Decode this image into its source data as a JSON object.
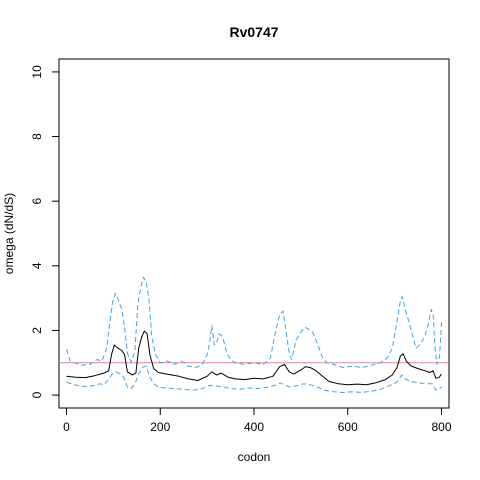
{
  "chart_data": {
    "type": "line",
    "title": "Rv0747",
    "xlabel": "codon",
    "ylabel": "omega (dN/dS)",
    "xlim": [
      -16,
      816
    ],
    "ylim": [
      -0.4,
      10.4
    ],
    "x_ticks": [
      0,
      200,
      400,
      600,
      800
    ],
    "y_ticks": [
      0,
      2,
      4,
      6,
      8,
      10
    ],
    "grid": false,
    "reference_line": {
      "y": 1,
      "color": "#d8899f"
    },
    "colors": {
      "estimate": "#000000",
      "interval": "#3ea4e3"
    },
    "series": [
      {
        "style": "solid",
        "points": [
          [
            0,
            0.58
          ],
          [
            20,
            0.55
          ],
          [
            40,
            0.54
          ],
          [
            60,
            0.6
          ],
          [
            80,
            0.68
          ],
          [
            90,
            0.75
          ],
          [
            96,
            1.25
          ],
          [
            102,
            1.55
          ],
          [
            110,
            1.45
          ],
          [
            118,
            1.38
          ],
          [
            124,
            1.25
          ],
          [
            130,
            0.72
          ],
          [
            140,
            0.62
          ],
          [
            148,
            0.68
          ],
          [
            154,
            1.45
          ],
          [
            160,
            1.78
          ],
          [
            166,
            1.98
          ],
          [
            172,
            1.9
          ],
          [
            178,
            1.25
          ],
          [
            186,
            0.82
          ],
          [
            196,
            0.7
          ],
          [
            210,
            0.66
          ],
          [
            225,
            0.62
          ],
          [
            240,
            0.58
          ],
          [
            260,
            0.5
          ],
          [
            280,
            0.45
          ],
          [
            300,
            0.58
          ],
          [
            310,
            0.72
          ],
          [
            320,
            0.62
          ],
          [
            330,
            0.68
          ],
          [
            345,
            0.55
          ],
          [
            360,
            0.5
          ],
          [
            380,
            0.48
          ],
          [
            400,
            0.52
          ],
          [
            420,
            0.5
          ],
          [
            440,
            0.58
          ],
          [
            455,
            0.88
          ],
          [
            465,
            0.95
          ],
          [
            475,
            0.72
          ],
          [
            485,
            0.65
          ],
          [
            500,
            0.78
          ],
          [
            510,
            0.88
          ],
          [
            520,
            0.85
          ],
          [
            530,
            0.78
          ],
          [
            545,
            0.6
          ],
          [
            560,
            0.42
          ],
          [
            580,
            0.35
          ],
          [
            600,
            0.32
          ],
          [
            620,
            0.34
          ],
          [
            640,
            0.32
          ],
          [
            660,
            0.38
          ],
          [
            680,
            0.48
          ],
          [
            695,
            0.62
          ],
          [
            705,
            0.85
          ],
          [
            712,
            1.2
          ],
          [
            718,
            1.28
          ],
          [
            725,
            1.05
          ],
          [
            735,
            0.9
          ],
          [
            750,
            0.82
          ],
          [
            765,
            0.75
          ],
          [
            775,
            0.7
          ],
          [
            782,
            0.75
          ],
          [
            788,
            0.52
          ],
          [
            795,
            0.55
          ],
          [
            800,
            0.65
          ]
        ]
      },
      {
        "style": "dashed",
        "points": [
          [
            0,
            1.42
          ],
          [
            8,
            1.05
          ],
          [
            18,
            1.0
          ],
          [
            30,
            0.92
          ],
          [
            50,
            0.95
          ],
          [
            65,
            1.1
          ],
          [
            75,
            1.05
          ],
          [
            85,
            1.4
          ],
          [
            92,
            2.2
          ],
          [
            98,
            2.85
          ],
          [
            104,
            3.15
          ],
          [
            110,
            2.95
          ],
          [
            118,
            2.65
          ],
          [
            124,
            2.1
          ],
          [
            130,
            1.3
          ],
          [
            138,
            1.02
          ],
          [
            146,
            1.35
          ],
          [
            152,
            2.8
          ],
          [
            158,
            3.3
          ],
          [
            164,
            3.65
          ],
          [
            170,
            3.5
          ],
          [
            176,
            2.95
          ],
          [
            182,
            1.8
          ],
          [
            190,
            1.25
          ],
          [
            200,
            1.0
          ],
          [
            215,
            1.05
          ],
          [
            230,
            0.95
          ],
          [
            245,
            1.05
          ],
          [
            260,
            0.9
          ],
          [
            275,
            0.85
          ],
          [
            290,
            0.95
          ],
          [
            300,
            1.25
          ],
          [
            305,
            1.6
          ],
          [
            310,
            2.15
          ],
          [
            315,
            1.55
          ],
          [
            320,
            1.6
          ],
          [
            325,
            1.9
          ],
          [
            330,
            1.85
          ],
          [
            335,
            1.7
          ],
          [
            342,
            1.3
          ],
          [
            350,
            1.1
          ],
          [
            360,
            1.0
          ],
          [
            380,
            0.95
          ],
          [
            400,
            1.0
          ],
          [
            420,
            0.95
          ],
          [
            435,
            1.15
          ],
          [
            445,
            1.9
          ],
          [
            455,
            2.5
          ],
          [
            462,
            2.6
          ],
          [
            468,
            2.0
          ],
          [
            475,
            1.3
          ],
          [
            480,
            1.1
          ],
          [
            490,
            1.7
          ],
          [
            500,
            1.95
          ],
          [
            508,
            2.1
          ],
          [
            515,
            2.05
          ],
          [
            525,
            1.95
          ],
          [
            535,
            1.6
          ],
          [
            545,
            1.2
          ],
          [
            555,
            1.0
          ],
          [
            570,
            0.95
          ],
          [
            590,
            0.85
          ],
          [
            610,
            0.9
          ],
          [
            630,
            0.85
          ],
          [
            650,
            0.92
          ],
          [
            670,
            1.0
          ],
          [
            685,
            1.15
          ],
          [
            695,
            1.45
          ],
          [
            705,
            2.3
          ],
          [
            712,
            2.9
          ],
          [
            716,
            3.05
          ],
          [
            722,
            2.7
          ],
          [
            730,
            2.3
          ],
          [
            738,
            1.85
          ],
          [
            746,
            1.45
          ],
          [
            756,
            1.6
          ],
          [
            764,
            1.8
          ],
          [
            772,
            2.2
          ],
          [
            778,
            2.65
          ],
          [
            782,
            2.5
          ],
          [
            786,
            1.5
          ],
          [
            790,
            0.95
          ],
          [
            796,
            1.2
          ],
          [
            800,
            2.25
          ]
        ]
      },
      {
        "style": "dashed",
        "points": [
          [
            0,
            0.4
          ],
          [
            15,
            0.32
          ],
          [
            30,
            0.28
          ],
          [
            45,
            0.26
          ],
          [
            60,
            0.3
          ],
          [
            70,
            0.35
          ],
          [
            80,
            0.32
          ],
          [
            90,
            0.5
          ],
          [
            98,
            0.65
          ],
          [
            106,
            0.72
          ],
          [
            114,
            0.65
          ],
          [
            122,
            0.55
          ],
          [
            130,
            0.25
          ],
          [
            138,
            0.2
          ],
          [
            146,
            0.35
          ],
          [
            154,
            0.65
          ],
          [
            162,
            0.85
          ],
          [
            170,
            0.9
          ],
          [
            178,
            0.55
          ],
          [
            186,
            0.35
          ],
          [
            196,
            0.25
          ],
          [
            210,
            0.22
          ],
          [
            230,
            0.2
          ],
          [
            250,
            0.18
          ],
          [
            270,
            0.15
          ],
          [
            290,
            0.2
          ],
          [
            305,
            0.3
          ],
          [
            320,
            0.28
          ],
          [
            335,
            0.25
          ],
          [
            350,
            0.2
          ],
          [
            370,
            0.18
          ],
          [
            390,
            0.22
          ],
          [
            410,
            0.2
          ],
          [
            430,
            0.25
          ],
          [
            445,
            0.3
          ],
          [
            455,
            0.38
          ],
          [
            465,
            0.32
          ],
          [
            475,
            0.25
          ],
          [
            490,
            0.28
          ],
          [
            505,
            0.35
          ],
          [
            520,
            0.32
          ],
          [
            535,
            0.25
          ],
          [
            550,
            0.15
          ],
          [
            570,
            0.1
          ],
          [
            590,
            0.08
          ],
          [
            610,
            0.1
          ],
          [
            630,
            0.08
          ],
          [
            650,
            0.12
          ],
          [
            670,
            0.18
          ],
          [
            690,
            0.3
          ],
          [
            705,
            0.4
          ],
          [
            715,
            0.62
          ],
          [
            722,
            0.5
          ],
          [
            735,
            0.42
          ],
          [
            750,
            0.38
          ],
          [
            765,
            0.35
          ],
          [
            780,
            0.35
          ],
          [
            788,
            0.15
          ],
          [
            795,
            0.2
          ],
          [
            800,
            0.25
          ]
        ]
      }
    ]
  }
}
